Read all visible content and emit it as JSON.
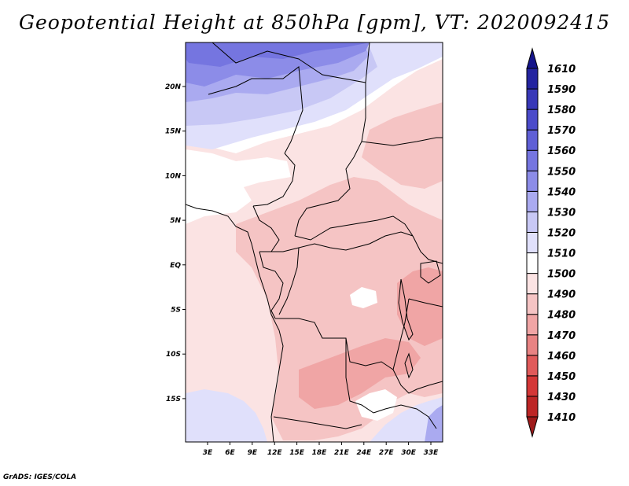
{
  "title": "Geopotential Height at 850hPa [gpm], VT: 2020092415",
  "credit": "GrADS: IGES/COLA",
  "map": {
    "lon_labels": [
      "3E",
      "6E",
      "9E",
      "12E",
      "15E",
      "18E",
      "21E",
      "24E",
      "27E",
      "30E",
      "33E"
    ],
    "lat_labels": [
      "20N",
      "15N",
      "10N",
      "5N",
      "EQ",
      "5S",
      "10S",
      "15S"
    ]
  },
  "colorbar": {
    "levels": [
      "1410",
      "1430",
      "1450",
      "1460",
      "1470",
      "1480",
      "1490",
      "1500",
      "1510",
      "1520",
      "1530",
      "1540",
      "1550",
      "1560",
      "1570",
      "1580",
      "1590",
      "1610"
    ],
    "colors": [
      "#9e1a1a",
      "#bd2626",
      "#d43737",
      "#e05a5a",
      "#e88383",
      "#f0a5a5",
      "#f5c4c4",
      "#fbe3e3",
      "#ffffff",
      "#e0e0fb",
      "#c8c8f5",
      "#aaaaf0",
      "#8c8ce8",
      "#7575e0",
      "#5f5fd6",
      "#4b4bca",
      "#3838b8",
      "#2424a0",
      "#14148a"
    ]
  }
}
